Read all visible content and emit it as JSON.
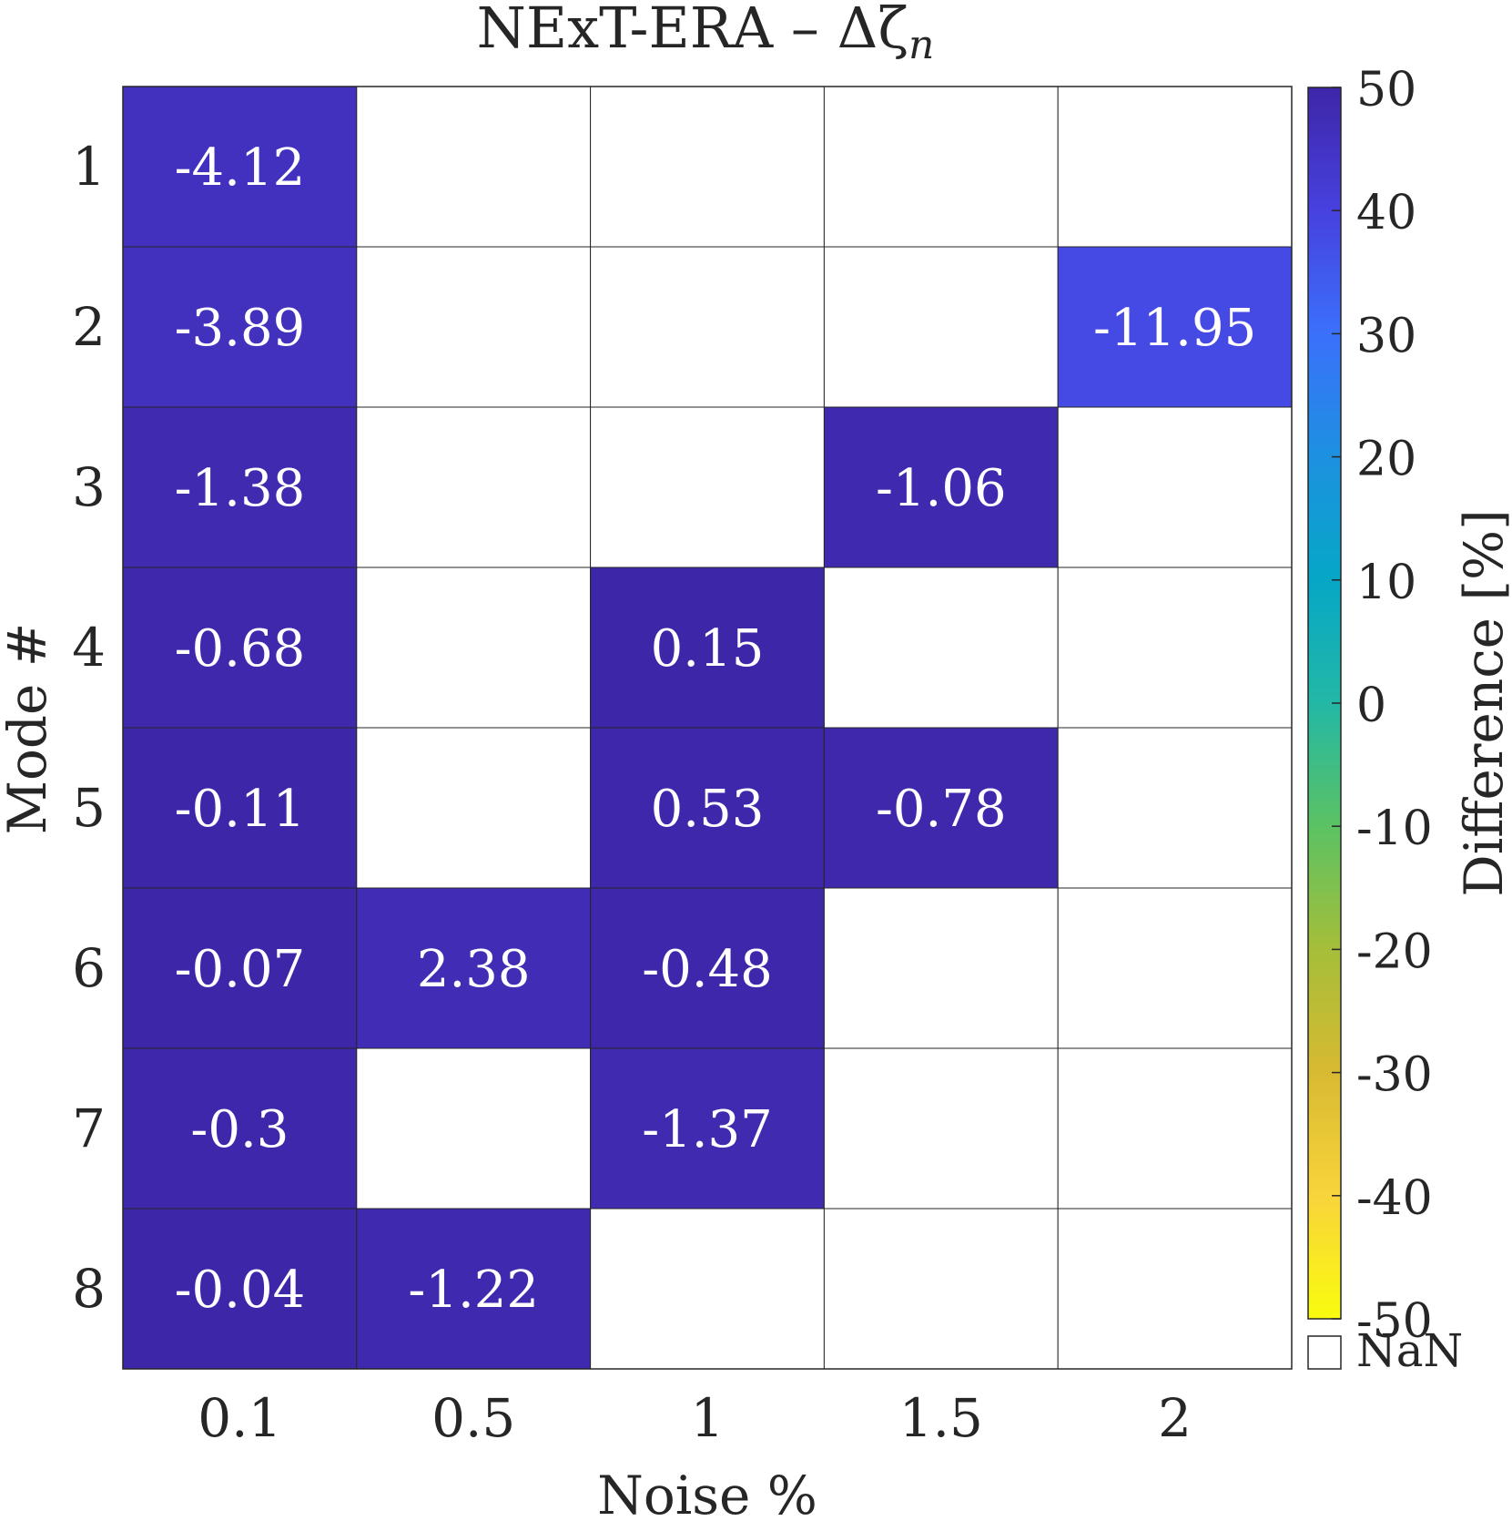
{
  "chart_data": {
    "type": "heatmap",
    "title": "NExT-ERA – Δζ",
    "title_subscript": "n",
    "xlabel": "Noise %",
    "ylabel": "Mode #",
    "x_categories": [
      "0.1",
      "0.5",
      "1",
      "1.5",
      "2"
    ],
    "y_categories": [
      "1",
      "2",
      "3",
      "4",
      "5",
      "6",
      "7",
      "8"
    ],
    "values": [
      [
        -4.12,
        null,
        null,
        null,
        null
      ],
      [
        -3.89,
        null,
        null,
        null,
        -11.95
      ],
      [
        -1.38,
        null,
        null,
        -1.06,
        null
      ],
      [
        -0.68,
        null,
        0.15,
        null,
        null
      ],
      [
        -0.11,
        null,
        0.53,
        -0.78,
        null
      ],
      [
        -0.07,
        2.38,
        -0.48,
        null,
        null
      ],
      [
        -0.3,
        null,
        -1.37,
        null,
        null
      ],
      [
        -0.04,
        -1.22,
        null,
        null,
        null
      ]
    ],
    "cell_labels": [
      [
        "-4.12",
        "",
        "",
        "",
        ""
      ],
      [
        "-3.89",
        "",
        "",
        "",
        "-11.95"
      ],
      [
        "-1.38",
        "",
        "",
        "-1.06",
        ""
      ],
      [
        "-0.68",
        "",
        "0.15",
        "",
        ""
      ],
      [
        "-0.11",
        "",
        "0.53",
        "-0.78",
        ""
      ],
      [
        "-0.07",
        "2.38",
        "-0.48",
        "",
        ""
      ],
      [
        "-0.3",
        "",
        "-1.37",
        "",
        ""
      ],
      [
        "-0.04",
        "-1.22",
        "",
        "",
        ""
      ]
    ],
    "colorbar": {
      "label": "Difference [%]",
      "range": [
        -50,
        50
      ],
      "reversed": true,
      "ticks": [
        "50",
        "40",
        "30",
        "20",
        "10",
        "0",
        "-10",
        "-20",
        "-30",
        "-40",
        "-50"
      ],
      "nan_label": "NaN",
      "colormap": "parula"
    },
    "nan_color": "#ffffff",
    "label_color": "#ffffff",
    "grid": true
  }
}
